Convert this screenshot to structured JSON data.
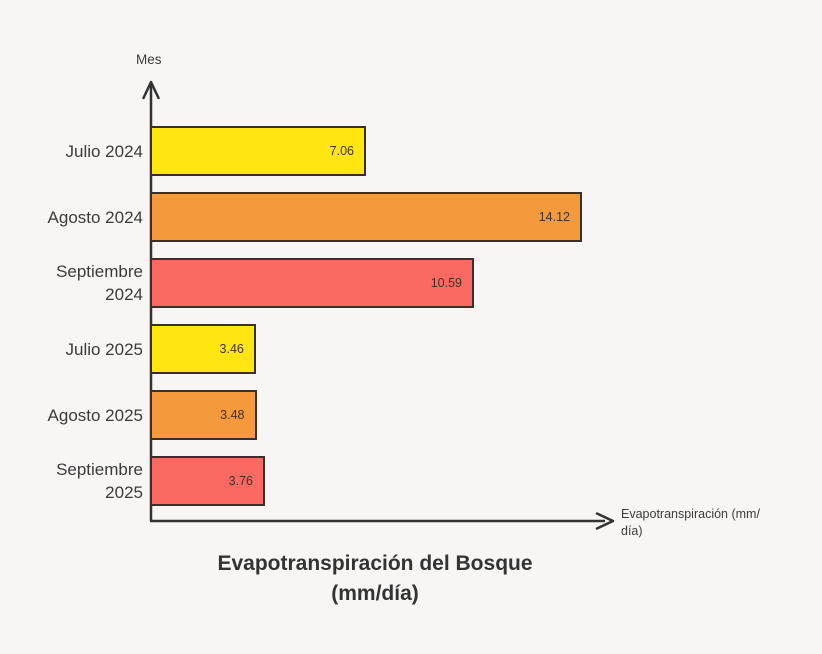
{
  "chart_data": {
    "type": "bar",
    "orientation": "horizontal",
    "title": "Evapotranspiración del Bosque (mm/día)",
    "title_line1": "Evapotranspiración del Bosque",
    "title_line2": "(mm/día)",
    "y_axis_label": "Mes",
    "x_axis_label": "Evapotranspiración (mm/día)",
    "x_axis_label_line1": "Evapotranspiración (mm/",
    "x_axis_label_line2": "día)",
    "categories": [
      "Julio 2024",
      "Agosto 2024",
      "Septiembre 2024",
      "Julio 2025",
      "Agosto 2025",
      "Septiembre 2025"
    ],
    "values": [
      7.06,
      14.12,
      10.59,
      3.46,
      3.48,
      3.76
    ],
    "value_labels": [
      "7.06",
      "14.12",
      "10.59",
      "3.46",
      "3.48",
      "3.76"
    ],
    "bar_colors": [
      "#ffe512",
      "#f5993d",
      "#fa6a63",
      "#ffe512",
      "#f5993d",
      "#fa6a63"
    ],
    "xlim": [
      0,
      14.12
    ],
    "grid": false,
    "legend": false
  },
  "style": {
    "background": "#f7f6f5",
    "axis_color": "#333333",
    "bar_border_color": "#3a3029",
    "text_color": "#3b3b3b",
    "yellow": "#ffe512",
    "orange": "#f5993d",
    "red": "#fa6a63"
  }
}
